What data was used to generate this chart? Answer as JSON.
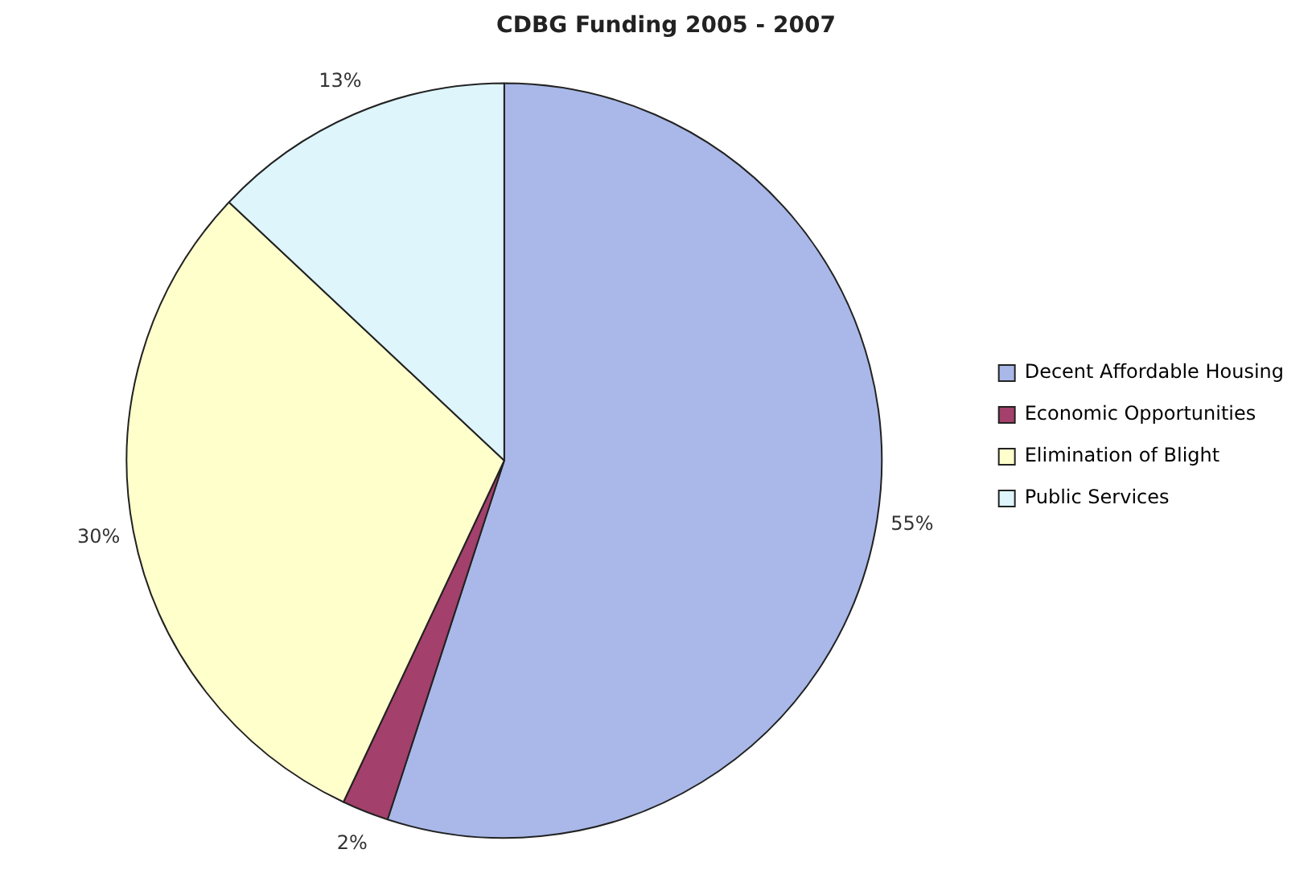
{
  "chart_data": {
    "type": "pie",
    "title": "CDBG Funding 2005 - 2007",
    "categories": [
      "Decent Affordable Housing",
      "Economic Opportunities",
      "Elimination of Blight",
      "Public Services"
    ],
    "values": [
      55,
      2,
      30,
      13
    ],
    "colors": [
      "#a9b8e8",
      "#a3406b",
      "#ffffcc",
      "#ddf5fb"
    ],
    "value_labels": [
      "55%",
      "2%",
      "30%",
      "13%"
    ],
    "legend": "right"
  }
}
